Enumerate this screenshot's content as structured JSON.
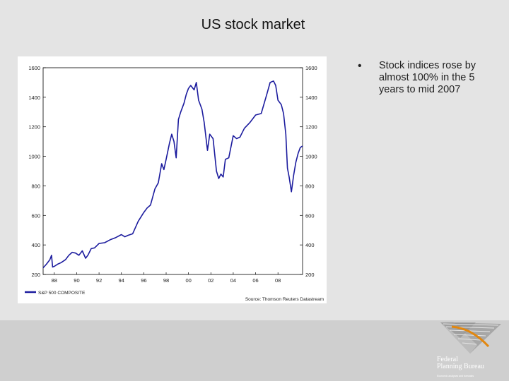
{
  "slide": {
    "title": "US stock market",
    "bullet_symbol": "•",
    "bullet": "Stock indices rose by almost 100% in the 5 years to mid 2007"
  },
  "logo": {
    "name_line1": "Federal",
    "name_line2": "Planning Bureau",
    "tagline": "Economic analyses and forecasts"
  },
  "colors": {
    "series": "#1c1c9e",
    "axis": "#000000",
    "panel": "#ffffff",
    "background": "#e4e4e4"
  },
  "chart_data": {
    "type": "line",
    "title": "",
    "xlabel": "",
    "ylabel": "",
    "xlim": [
      1987.0,
      2010.2
    ],
    "ylim": [
      200,
      1600
    ],
    "x_ticks": [
      {
        "value": 1988,
        "label": "88"
      },
      {
        "value": 1990,
        "label": "90"
      },
      {
        "value": 1992,
        "label": "92"
      },
      {
        "value": 1994,
        "label": "94"
      },
      {
        "value": 1996,
        "label": "96"
      },
      {
        "value": 1998,
        "label": "98"
      },
      {
        "value": 2000,
        "label": "00"
      },
      {
        "value": 2002,
        "label": "02"
      },
      {
        "value": 2004,
        "label": "04"
      },
      {
        "value": 2006,
        "label": "06"
      },
      {
        "value": 2008,
        "label": "08"
      }
    ],
    "y_ticks": [
      200,
      400,
      600,
      800,
      1000,
      1200,
      1400,
      1600
    ],
    "legend": "S&P 500 COMPOSITE",
    "legend_position": "bottom-left",
    "source": "Source: Thomson Reuters Datastream",
    "series": [
      {
        "name": "S&P 500 COMPOSITE",
        "x": [
          1987.0,
          1987.3,
          1987.6,
          1987.75,
          1987.85,
          1988.0,
          1988.3,
          1988.6,
          1989.0,
          1989.3,
          1989.6,
          1989.9,
          1990.2,
          1990.5,
          1990.8,
          1991.0,
          1991.3,
          1991.6,
          1992.0,
          1992.5,
          1993.0,
          1993.5,
          1994.0,
          1994.3,
          1994.6,
          1995.0,
          1995.5,
          1996.0,
          1996.3,
          1996.6,
          1997.0,
          1997.3,
          1997.6,
          1997.8,
          1998.0,
          1998.3,
          1998.5,
          1998.7,
          1998.9,
          1999.1,
          1999.3,
          1999.6,
          1999.8,
          2000.0,
          2000.2,
          2000.5,
          2000.7,
          2000.9,
          2001.2,
          2001.4,
          2001.7,
          2001.9,
          2002.2,
          2002.5,
          2002.7,
          2002.9,
          2003.1,
          2003.3,
          2003.6,
          2004.0,
          2004.3,
          2004.6,
          2005.0,
          2005.5,
          2006.0,
          2006.5,
          2007.0,
          2007.3,
          2007.6,
          2007.8,
          2008.0,
          2008.3,
          2008.5,
          2008.7,
          2008.85,
          2009.0,
          2009.2,
          2009.4,
          2009.6,
          2009.8,
          2010.0,
          2010.2
        ],
        "values": [
          245,
          270,
          300,
          330,
          250,
          255,
          270,
          280,
          300,
          330,
          350,
          345,
          330,
          360,
          310,
          330,
          375,
          380,
          410,
          415,
          435,
          450,
          470,
          455,
          465,
          475,
          560,
          620,
          650,
          670,
          780,
          820,
          950,
          910,
          980,
          1090,
          1150,
          1100,
          990,
          1250,
          1300,
          1360,
          1420,
          1460,
          1480,
          1450,
          1500,
          1380,
          1320,
          1230,
          1040,
          1150,
          1120,
          900,
          850,
          880,
          860,
          980,
          990,
          1140,
          1120,
          1130,
          1190,
          1230,
          1280,
          1290,
          1420,
          1500,
          1510,
          1480,
          1380,
          1350,
          1290,
          1150,
          920,
          860,
          760,
          870,
          960,
          1020,
          1060,
          1070
        ]
      }
    ]
  }
}
